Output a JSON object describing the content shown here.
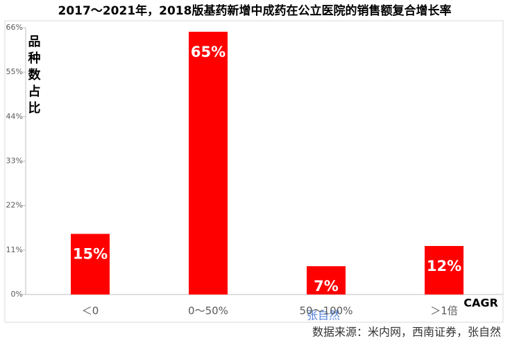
{
  "chart_data": {
    "type": "bar",
    "title": "2017～2021年，2018版基药新增中成药在公立医院的销售额复合增长率",
    "y_label": "品种数占比",
    "x_label": "CAGR",
    "source": "数据来源：米内网，西南证券，张自然",
    "watermark": "张自然",
    "categories": [
      "＜0",
      "0～50%",
      "50～100%",
      "＞1倍"
    ],
    "values": [
      15,
      65,
      7,
      12
    ],
    "value_labels": [
      "15%",
      "65%",
      "7%",
      "12%"
    ],
    "color": "#ff0000",
    "ylim": [
      0,
      66
    ],
    "yticks": [
      {
        "value": 0,
        "label": "0%"
      },
      {
        "value": 11,
        "label": "11%"
      },
      {
        "value": 22,
        "label": "22%"
      },
      {
        "value": 33,
        "label": "33%"
      },
      {
        "value": 44,
        "label": "44%"
      },
      {
        "value": 55,
        "label": "55%"
      },
      {
        "value": 66,
        "label": "66%"
      }
    ],
    "grid": false
  }
}
